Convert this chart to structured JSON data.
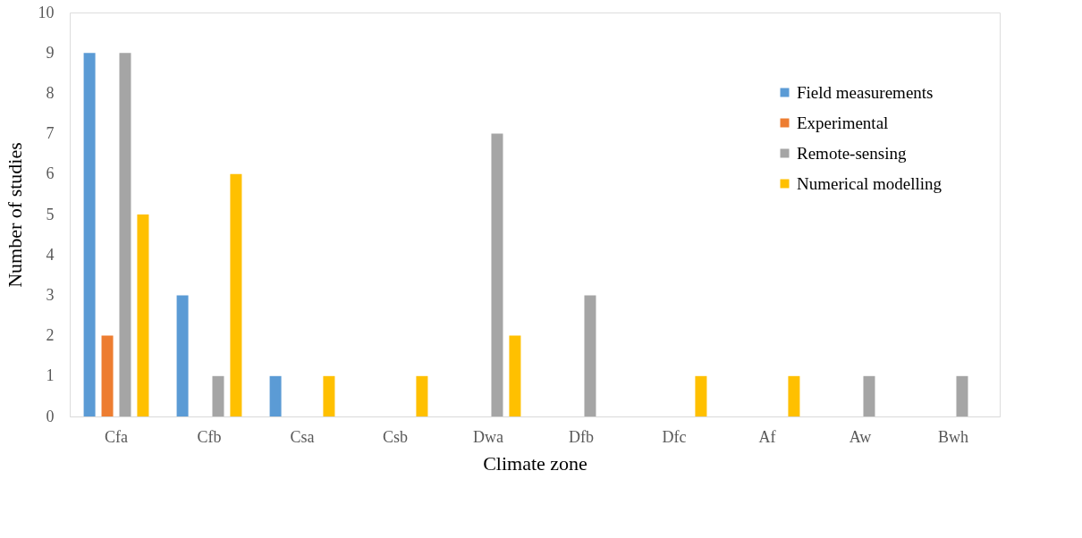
{
  "chart_data": {
    "type": "bar",
    "xlabel": "Climate zone",
    "ylabel": "Number of studies",
    "categories": [
      "Cfa",
      "Cfb",
      "Csa",
      "Csb",
      "Dwa",
      "Dfb",
      "Dfc",
      "Af",
      "Aw",
      "Bwh"
    ],
    "series": [
      {
        "name": "Field measurements",
        "color": "#5b9bd5",
        "values": [
          9,
          3,
          1,
          0,
          0,
          0,
          0,
          0,
          0,
          0
        ]
      },
      {
        "name": "Experimental",
        "color": "#ed7d31",
        "values": [
          2,
          0,
          0,
          0,
          0,
          0,
          0,
          0,
          0,
          0
        ]
      },
      {
        "name": "Remote-sensing",
        "color": "#a5a5a5",
        "values": [
          9,
          1,
          0,
          0,
          7,
          3,
          0,
          0,
          1,
          1
        ]
      },
      {
        "name": "Numerical modelling",
        "color": "#ffc000",
        "values": [
          5,
          6,
          1,
          1,
          2,
          0,
          1,
          1,
          0,
          0
        ]
      }
    ],
    "ylim": [
      0,
      10
    ],
    "yticks": [
      0,
      1,
      2,
      3,
      4,
      5,
      6,
      7,
      8,
      9,
      10
    ],
    "grid": false,
    "legend": "top right"
  }
}
